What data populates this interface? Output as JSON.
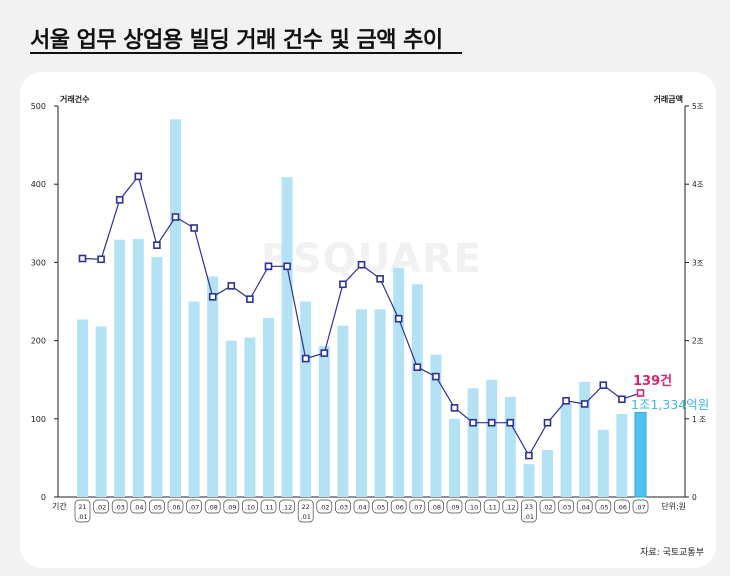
{
  "title": "서울 업무 상업용 빌딩 거래 건수 및 금액 추이",
  "source": "자료: 국토교통부",
  "watermark": "RSQUARE",
  "chart_data": {
    "type": "bar+line",
    "left_axis_label": "거래건수",
    "right_axis_label": "거래금액",
    "unit_label": "단위:원",
    "x_axis_label": "기간",
    "ylim_left": [
      0,
      500
    ],
    "ylim_right": [
      0,
      5
    ],
    "left_ticks": [
      "0",
      "100",
      "200",
      "300",
      "400",
      "500"
    ],
    "right_ticks": [
      "0",
      "1 조",
      "2조",
      "3조",
      "4조",
      "5조"
    ],
    "grid": false,
    "categories": [
      "21.01",
      "21.02",
      "21.03",
      "21.04",
      "21.05",
      "21.06",
      "21.07",
      "21.08",
      "21.09",
      "21.10",
      "21.11",
      "21.12",
      "22.01",
      "22.02",
      "22.03",
      "22.04",
      "22.05",
      "22.06",
      "22.07",
      "22.08",
      "22.09",
      "22.10",
      "22.11",
      "22.12",
      "23.01",
      "23.02",
      "23.03",
      "23.04",
      "23.05",
      "23.06",
      "23.07"
    ],
    "year_labels": {
      "0": "21",
      "12": "22",
      "24": "23"
    },
    "month_labels": [
      ".01",
      ".02",
      ".03",
      ".04",
      ".05",
      ".06",
      ".07",
      ".08",
      ".09",
      ".10",
      ".11",
      ".12",
      ".01",
      ".02",
      ".03",
      ".04",
      ".05",
      ".06",
      ".07",
      ".08",
      ".09",
      ".10",
      ".11",
      ".12",
      ".01",
      ".02",
      ".03",
      ".04",
      ".05",
      ".06",
      ".07"
    ],
    "series": [
      {
        "name": "거래건수",
        "kind": "bar",
        "color": "#b3e2f5",
        "highlight_color": "#4ec3ee",
        "values": [
          227,
          218,
          329,
          330,
          307,
          483,
          250,
          282,
          200,
          204,
          229,
          409,
          250,
          193,
          219,
          240,
          240,
          293,
          272,
          182,
          100,
          139,
          150,
          128,
          42,
          60,
          120,
          147,
          86,
          106,
          108
        ]
      },
      {
        "name": "거래금액",
        "kind": "line",
        "color": "#2e3192",
        "values": [
          3.05,
          3.04,
          3.8,
          4.1,
          3.22,
          3.58,
          3.44,
          2.56,
          2.7,
          2.53,
          2.95,
          2.95,
          1.77,
          1.84,
          2.72,
          2.97,
          2.79,
          2.28,
          1.66,
          1.54,
          1.14,
          0.95,
          0.95,
          0.95,
          0.53,
          0.95,
          1.23,
          1.19,
          1.43,
          1.25,
          1.33
        ]
      }
    ],
    "annotations": [
      {
        "text": "139건",
        "color": "#d6246e"
      },
      {
        "text": "1조1,334억원",
        "color": "#3fb7e0"
      }
    ]
  }
}
